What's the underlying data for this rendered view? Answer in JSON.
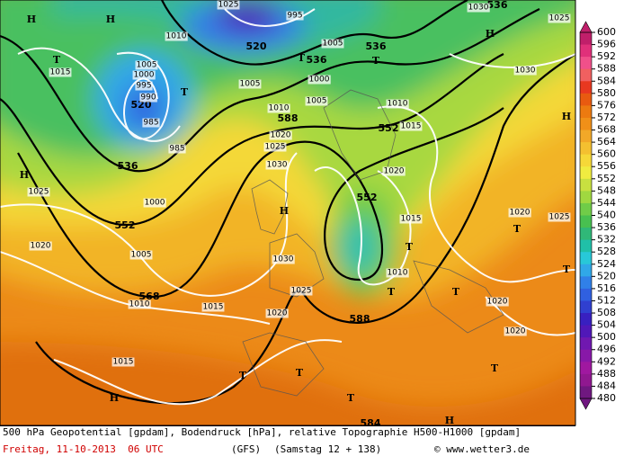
{
  "map": {
    "labels": [
      "H",
      "H",
      "H",
      "H",
      "H",
      "H",
      "H",
      "H",
      "T",
      "T",
      "T",
      "T",
      "T",
      "T",
      "T",
      "T",
      "T",
      "T",
      "T",
      "T",
      "T",
      "536",
      "520",
      "536",
      "536",
      "520",
      "536",
      "552",
      "588",
      "552",
      "552",
      "568",
      "588",
      "584",
      "1025",
      "995",
      "1010",
      "1005",
      "1015",
      "1005",
      "1000",
      "995",
      "990",
      "985",
      "1005",
      "1000",
      "1005",
      "1010",
      "1010",
      "1015",
      "1020",
      "1025",
      "1030",
      "985",
      "1020",
      "1000",
      "1025",
      "1020",
      "1005",
      "1030",
      "1015",
      "1010",
      "1025",
      "1015",
      "1010",
      "1020",
      "1020",
      "1020",
      "1015",
      "1020",
      "1025",
      "1030",
      "1025",
      "1030"
    ],
    "legend": {
      "values": [
        600,
        596,
        592,
        588,
        584,
        580,
        576,
        572,
        568,
        564,
        560,
        556,
        552,
        548,
        544,
        540,
        536,
        532,
        528,
        524,
        520,
        516,
        512,
        508,
        504,
        500,
        496,
        492,
        488,
        484,
        480
      ],
      "colors": [
        "#c01f6a",
        "#e0307a",
        "#f0508a",
        "#f06060",
        "#e83820",
        "#e85a10",
        "#ec7a10",
        "#f09018",
        "#f2a828",
        "#f4c030",
        "#f6d838",
        "#f0ec40",
        "#c8e040",
        "#a0d840",
        "#70cc48",
        "#48c050",
        "#30b878",
        "#20c0a8",
        "#28c8d8",
        "#30a8e8",
        "#3080e8",
        "#3060e0",
        "#3040d0",
        "#3820c0",
        "#5018b8",
        "#7018b0",
        "#8818a8",
        "#a018a0",
        "#901890",
        "#701880"
      ]
    },
    "footer": {
      "line1": "500 hPa Geopotential [gpdam], Bodendruck [hPa], relative Topographie H500-H1000 [gpdam]",
      "date": "Freitag, 11-10-2013  06 UTC",
      "model": "(GFS)",
      "forecast": "(Samstag 12 + 138)",
      "credit": "© www.wetter3.de"
    }
  }
}
